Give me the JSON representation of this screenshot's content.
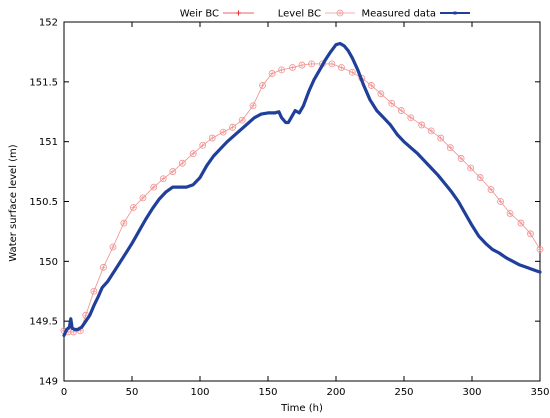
{
  "chart_data": {
    "type": "line",
    "title": "",
    "xlabel": "Time (h)",
    "ylabel": "Water surface level (m)",
    "xlim": [
      0,
      350
    ],
    "ylim": [
      149,
      152
    ],
    "xticks": [
      0,
      50,
      100,
      150,
      200,
      250,
      300,
      350
    ],
    "yticks": [
      149,
      149.5,
      150,
      150.5,
      151,
      151.5,
      152
    ],
    "ytick_labels": [
      "149",
      "149.5",
      "150",
      "150.5",
      "151",
      "151.5",
      "152"
    ],
    "grid": false,
    "legend_position": "top",
    "series": [
      {
        "name": "Weir BC",
        "color": "#e03030",
        "marker": "plus",
        "x": [],
        "y": []
      },
      {
        "name": "Level BC",
        "color": "#f09090",
        "marker": "circle",
        "x": [
          0,
          3,
          7,
          12,
          16,
          22,
          29,
          36,
          44,
          51,
          58,
          66,
          73,
          80,
          87,
          95,
          102,
          109,
          117,
          124,
          131,
          139,
          146,
          153,
          160,
          168,
          175,
          182,
          190,
          197,
          204,
          212,
          219,
          226,
          233,
          241,
          248,
          255,
          263,
          270,
          277,
          284,
          292,
          299,
          306,
          314,
          321,
          328,
          336,
          343,
          350
        ],
        "y": [
          149.42,
          149.41,
          149.41,
          149.42,
          149.55,
          149.75,
          149.95,
          150.12,
          150.32,
          150.45,
          150.53,
          150.62,
          150.69,
          150.75,
          150.82,
          150.9,
          150.97,
          151.03,
          151.08,
          151.12,
          151.18,
          151.3,
          151.47,
          151.57,
          151.6,
          151.62,
          151.64,
          151.65,
          151.65,
          151.65,
          151.62,
          151.58,
          151.53,
          151.47,
          151.4,
          151.32,
          151.26,
          151.2,
          151.14,
          151.09,
          151.03,
          150.95,
          150.86,
          150.78,
          150.7,
          150.6,
          150.5,
          150.4,
          150.32,
          150.23,
          150.1
        ]
      },
      {
        "name": "Measured data",
        "color": "#1f3f9a",
        "marker": "square",
        "x": [
          0,
          2,
          4,
          5,
          6,
          8,
          10,
          13,
          16,
          19,
          22,
          25,
          28,
          32,
          36,
          40,
          45,
          50,
          55,
          60,
          65,
          70,
          75,
          80,
          85,
          90,
          95,
          100,
          105,
          110,
          115,
          120,
          125,
          130,
          135,
          140,
          145,
          150,
          155,
          158,
          160,
          163,
          165,
          168,
          170,
          173,
          176,
          180,
          184,
          188,
          192,
          196,
          200,
          203,
          206,
          209,
          212,
          216,
          220,
          225,
          230,
          235,
          240,
          245,
          250,
          255,
          260,
          265,
          270,
          275,
          280,
          285,
          290,
          295,
          300,
          305,
          310,
          315,
          320,
          325,
          330,
          335,
          340,
          345,
          350
        ],
        "y": [
          149.38,
          149.43,
          149.45,
          149.52,
          149.44,
          149.43,
          149.43,
          149.45,
          149.5,
          149.55,
          149.63,
          149.7,
          149.78,
          149.83,
          149.9,
          149.97,
          150.06,
          150.15,
          150.25,
          150.35,
          150.44,
          150.52,
          150.58,
          150.62,
          150.62,
          150.62,
          150.64,
          150.7,
          150.8,
          150.88,
          150.94,
          151.0,
          151.05,
          151.1,
          151.15,
          151.2,
          151.23,
          151.24,
          151.24,
          151.25,
          151.2,
          151.16,
          151.16,
          151.22,
          151.26,
          151.24,
          151.3,
          151.42,
          151.52,
          151.6,
          151.68,
          151.75,
          151.81,
          151.82,
          151.8,
          151.76,
          151.7,
          151.6,
          151.48,
          151.35,
          151.26,
          151.2,
          151.14,
          151.06,
          151.0,
          150.95,
          150.9,
          150.84,
          150.78,
          150.72,
          150.65,
          150.58,
          150.5,
          150.4,
          150.3,
          150.21,
          150.15,
          150.1,
          150.07,
          150.03,
          150.0,
          149.97,
          149.95,
          149.93,
          149.91
        ]
      }
    ]
  }
}
